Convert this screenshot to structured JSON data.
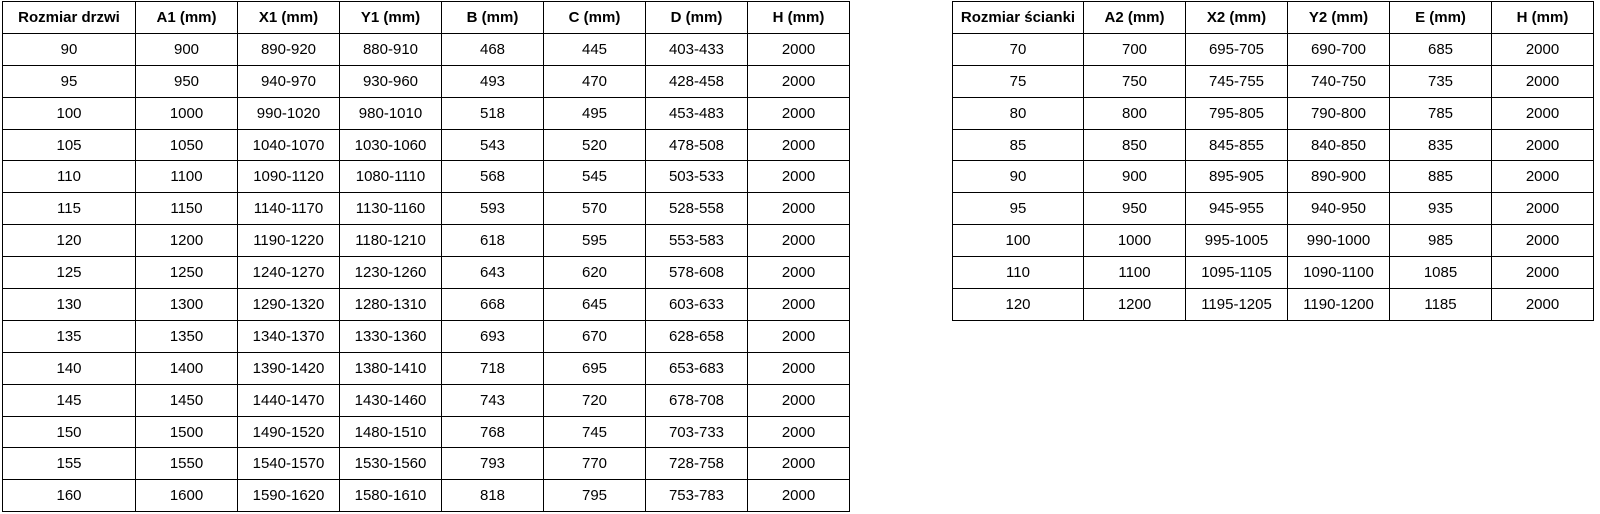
{
  "colors": {
    "border": "#000000",
    "background": "#ffffff",
    "text": "#000000"
  },
  "door_table": {
    "headers": [
      "Rozmiar drzwi",
      "A1 (mm)",
      "X1 (mm)",
      "Y1 (mm)",
      "B (mm)",
      "C (mm)",
      "D (mm)",
      "H (mm)"
    ],
    "rows": [
      [
        "90",
        "900",
        "890-920",
        "880-910",
        "468",
        "445",
        "403-433",
        "2000"
      ],
      [
        "95",
        "950",
        "940-970",
        "930-960",
        "493",
        "470",
        "428-458",
        "2000"
      ],
      [
        "100",
        "1000",
        "990-1020",
        "980-1010",
        "518",
        "495",
        "453-483",
        "2000"
      ],
      [
        "105",
        "1050",
        "1040-1070",
        "1030-1060",
        "543",
        "520",
        "478-508",
        "2000"
      ],
      [
        "110",
        "1100",
        "1090-1120",
        "1080-1110",
        "568",
        "545",
        "503-533",
        "2000"
      ],
      [
        "115",
        "1150",
        "1140-1170",
        "1130-1160",
        "593",
        "570",
        "528-558",
        "2000"
      ],
      [
        "120",
        "1200",
        "1190-1220",
        "1180-1210",
        "618",
        "595",
        "553-583",
        "2000"
      ],
      [
        "125",
        "1250",
        "1240-1270",
        "1230-1260",
        "643",
        "620",
        "578-608",
        "2000"
      ],
      [
        "130",
        "1300",
        "1290-1320",
        "1280-1310",
        "668",
        "645",
        "603-633",
        "2000"
      ],
      [
        "135",
        "1350",
        "1340-1370",
        "1330-1360",
        "693",
        "670",
        "628-658",
        "2000"
      ],
      [
        "140",
        "1400",
        "1390-1420",
        "1380-1410",
        "718",
        "695",
        "653-683",
        "2000"
      ],
      [
        "145",
        "1450",
        "1440-1470",
        "1430-1460",
        "743",
        "720",
        "678-708",
        "2000"
      ],
      [
        "150",
        "1500",
        "1490-1520",
        "1480-1510",
        "768",
        "745",
        "703-733",
        "2000"
      ],
      [
        "155",
        "1550",
        "1540-1570",
        "1530-1560",
        "793",
        "770",
        "728-758",
        "2000"
      ],
      [
        "160",
        "1600",
        "1590-1620",
        "1580-1610",
        "818",
        "795",
        "753-783",
        "2000"
      ]
    ]
  },
  "wall_table": {
    "headers": [
      "Rozmiar ścianki",
      "A2 (mm)",
      "X2 (mm)",
      "Y2 (mm)",
      "E (mm)",
      "H (mm)"
    ],
    "rows": [
      [
        "70",
        "700",
        "695-705",
        "690-700",
        "685",
        "2000"
      ],
      [
        "75",
        "750",
        "745-755",
        "740-750",
        "735",
        "2000"
      ],
      [
        "80",
        "800",
        "795-805",
        "790-800",
        "785",
        "2000"
      ],
      [
        "85",
        "850",
        "845-855",
        "840-850",
        "835",
        "2000"
      ],
      [
        "90",
        "900",
        "895-905",
        "890-900",
        "885",
        "2000"
      ],
      [
        "95",
        "950",
        "945-955",
        "940-950",
        "935",
        "2000"
      ],
      [
        "100",
        "1000",
        "995-1005",
        "990-1000",
        "985",
        "2000"
      ],
      [
        "110",
        "1100",
        "1095-1105",
        "1090-1100",
        "1085",
        "2000"
      ],
      [
        "120",
        "1200",
        "1195-1205",
        "1190-1200",
        "1185",
        "2000"
      ]
    ]
  }
}
